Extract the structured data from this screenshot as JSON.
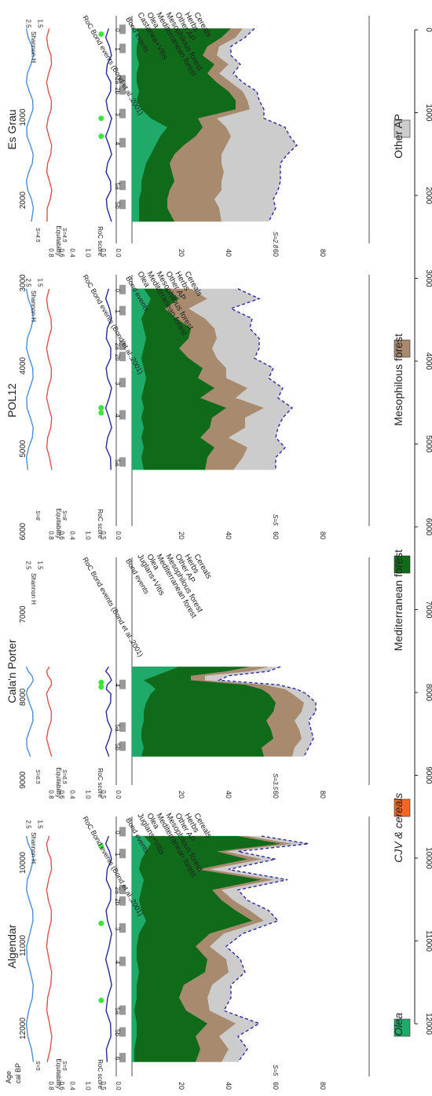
{
  "sites": [
    {
      "key": "algendar",
      "label": "Algendar"
    },
    {
      "key": "calanporter",
      "label": "Cala'n Porter"
    },
    {
      "key": "pol12",
      "label": "POL12"
    },
    {
      "key": "esgrau",
      "label": "Es Grau"
    }
  ],
  "age_axis": {
    "label_line1": "Age",
    "label_line2": "cal BP",
    "ticks": [
      "1000",
      "2000",
      "3000",
      "4000",
      "5000",
      "6000",
      "7000",
      "8000",
      "9000",
      "10000",
      "11000",
      "12000"
    ]
  },
  "top_axis_ticks": [
    "0",
    "1000",
    "2000",
    "3000",
    "4000",
    "5000",
    "6000",
    "7000",
    "8000",
    "9000",
    "10000",
    "11000",
    "12000"
  ],
  "pollen_axis_ticks": [
    "20",
    "40",
    "60",
    "80"
  ],
  "roc_axis": {
    "label": "RoC score",
    "ticks": [
      "0.0",
      "0.5",
      "1.0"
    ]
  },
  "equit_axis": {
    "label": "Equitability",
    "ticks": [
      "0.4",
      "0.6",
      "0.8"
    ]
  },
  "shannon_axis": {
    "label": "Shannon H",
    "ticks": [
      "1.5",
      "2.5"
    ]
  },
  "column_headers": {
    "algendar": [
      "Juglans+Vitis",
      "Olea",
      "Mediterranean forest",
      "Mesophilous forest",
      "Other AP",
      "Herbs",
      "Cereals"
    ],
    "calanporter": [
      "Juglans+Vitis",
      "Olea",
      "Mediterranean forest",
      "Mesophilous forest",
      "Other AP",
      "Herbs",
      "Cereals"
    ],
    "pol12": [
      "Olea",
      "Mediterranean forest",
      "Mesophilous forest",
      "Other AP",
      "Herbs",
      "Cereals"
    ],
    "esgrau": [
      "Castanea+Vitis",
      "Olea",
      "Mediterranean forest",
      "Mesophilous forest",
      "Other AP",
      "Herbs",
      "Cereals"
    ]
  },
  "bond_label": "Bond events",
  "roc_header": "RoC",
  "bond_ref": "RoC  Bond events (Bond et al.,2001)",
  "bond_events": {
    "algendar": [
      "0",
      "1",
      "2a",
      "2b",
      "3",
      "4",
      "5a",
      "5b",
      "6"
    ],
    "calanporter": [
      "4",
      "5a",
      "5b"
    ],
    "pol12": [
      "0",
      "1",
      "2a",
      "2b",
      "3",
      "4",
      "5a"
    ],
    "esgrau": [
      "0",
      "1",
      "2a",
      "2b",
      "3",
      "4",
      "5a",
      "5b"
    ]
  },
  "s_labels": {
    "algendar": {
      "pollen": "S=5",
      "shannon": "S=5",
      "equit": "S=5"
    },
    "calanporter": {
      "pollen": "S=3.5",
      "shannon": "S=6.5",
      "equit": "S=6.5"
    },
    "pol12": {
      "pollen": "S=5",
      "shannon": "S=8",
      "equit": "S=8"
    },
    "esgrau": {
      "pollen": "S=2.8",
      "shannon": "S=4.5",
      "equit": "S=4.5"
    }
  },
  "legend": [
    {
      "label": "Olea",
      "color": "#1faa6a"
    },
    {
      "label": "CJV & cereals",
      "color": "#f26522"
    },
    {
      "label": "Mediterranean forest",
      "color": "#0f6b1a"
    },
    {
      "label": "Mesophilous forest",
      "color": "#a88b6e"
    },
    {
      "label": "Other AP",
      "color": "#cccccc"
    }
  ],
  "chart_data": {
    "type": "area",
    "orientation": "rotated-90",
    "x_axis": "Age cal BP",
    "sites": [
      {
        "name": "Algendar",
        "age_range": [
          700,
          9700
        ],
        "age": [
          700,
          1000,
          1300,
          1600,
          2000,
          2400,
          2800,
          3200,
          3600,
          4000,
          4500,
          5000,
          5500,
          6000,
          6500,
          7000,
          7500,
          8000,
          8500,
          9000,
          9500
        ],
        "olea": [
          5,
          8,
          6,
          4,
          3,
          5,
          4,
          3,
          4,
          6,
          3,
          2,
          2,
          3,
          2,
          2,
          1,
          2,
          2,
          1,
          1
        ],
        "mediterranean": [
          40,
          55,
          30,
          45,
          25,
          50,
          30,
          35,
          40,
          45,
          30,
          25,
          30,
          28,
          20,
          18,
          22,
          30,
          25,
          28,
          26
        ],
        "mesophilous": [
          4,
          5,
          4,
          6,
          5,
          5,
          4,
          5,
          6,
          5,
          6,
          6,
          8,
          10,
          12,
          12,
          10,
          12,
          10,
          12,
          11
        ],
        "other_ap": [
          6,
          7,
          5,
          6,
          8,
          6,
          7,
          6,
          8,
          6,
          8,
          7,
          6,
          7,
          8,
          10,
          6,
          10,
          8,
          8,
          7
        ],
        "roc_peaks": [
          1100,
          4100,
          7100
        ]
      },
      {
        "name": "Cala'n Porter",
        "age_range": [
          4800,
          8800
        ],
        "age": [
          4800,
          5000,
          5200,
          5400,
          5600,
          5800,
          6000,
          6400,
          6800,
          7200,
          7600,
          8000,
          8400,
          8800
        ],
        "olea": [
          20,
          15,
          10,
          5,
          8,
          10,
          8,
          6,
          5,
          5,
          4,
          4,
          5,
          4
        ],
        "mediterranean": [
          30,
          25,
          15,
          20,
          40,
          45,
          50,
          55,
          55,
          52,
          55,
          56,
          50,
          52
        ],
        "mesophilous": [
          8,
          10,
          6,
          6,
          8,
          10,
          10,
          12,
          12,
          12,
          12,
          12,
          14,
          12
        ],
        "other_ap": [
          5,
          8,
          10,
          6,
          6,
          5,
          6,
          5,
          6,
          6,
          5,
          5,
          6,
          5
        ],
        "roc_peaks": [
          5500,
          5700
        ]
      },
      {
        "name": "POL12",
        "age_range": [
          500,
          7800
        ],
        "age": [
          500,
          900,
          1300,
          1700,
          2100,
          2500,
          2900,
          3300,
          3700,
          4100,
          4500,
          4900,
          5300,
          5700,
          6100,
          6500,
          6900,
          7300,
          7800
        ],
        "olea": [
          5,
          8,
          6,
          4,
          5,
          6,
          5,
          4,
          5,
          6,
          5,
          4,
          5,
          4,
          5,
          4,
          5,
          4,
          5
        ],
        "mediterranean": [
          10,
          12,
          8,
          15,
          20,
          18,
          15,
          20,
          25,
          22,
          30,
          25,
          35,
          30,
          28,
          25,
          30,
          28,
          26
        ],
        "mesophilous": [
          10,
          12,
          10,
          12,
          10,
          12,
          14,
          12,
          10,
          12,
          14,
          15,
          16,
          14,
          15,
          12,
          14,
          15,
          12
        ],
        "other_ap": [
          20,
          22,
          18,
          20,
          15,
          18,
          20,
          16,
          20,
          18,
          15,
          18,
          12,
          16,
          14,
          20,
          16,
          14,
          18
        ],
        "roc_peaks": [
          5300,
          5500
        ]
      },
      {
        "name": "Es Grau",
        "age_range": [
          500,
          9100
        ],
        "age": [
          500,
          900,
          1300,
          1700,
          2100,
          2500,
          2900,
          3300,
          3700,
          4100,
          4500,
          4900,
          5300,
          5700,
          6100,
          6500,
          6900,
          7300,
          7700,
          8100,
          8500,
          9100
        ],
        "olea": [
          2,
          3,
          2,
          2,
          3,
          2,
          2,
          3,
          2,
          4,
          8,
          15,
          12,
          10,
          8,
          6,
          5,
          4,
          4,
          3,
          3,
          3
        ],
        "mediterranean": [
          40,
          35,
          30,
          28,
          32,
          30,
          34,
          38,
          42,
          40,
          20,
          15,
          15,
          12,
          10,
          10,
          12,
          14,
          12,
          12,
          12,
          15
        ],
        "mesophilous": [
          5,
          6,
          5,
          6,
          6,
          5,
          6,
          6,
          5,
          6,
          8,
          10,
          15,
          18,
          20,
          22,
          22,
          20,
          22,
          20,
          22,
          20
        ],
        "other_ap": [
          5,
          4,
          5,
          6,
          5,
          6,
          5,
          6,
          5,
          6,
          20,
          25,
          25,
          30,
          28,
          25,
          24,
          25,
          24,
          25,
          24,
          20
        ],
        "roc_peaks": [
          750,
          4500,
          5300
        ]
      }
    ]
  }
}
